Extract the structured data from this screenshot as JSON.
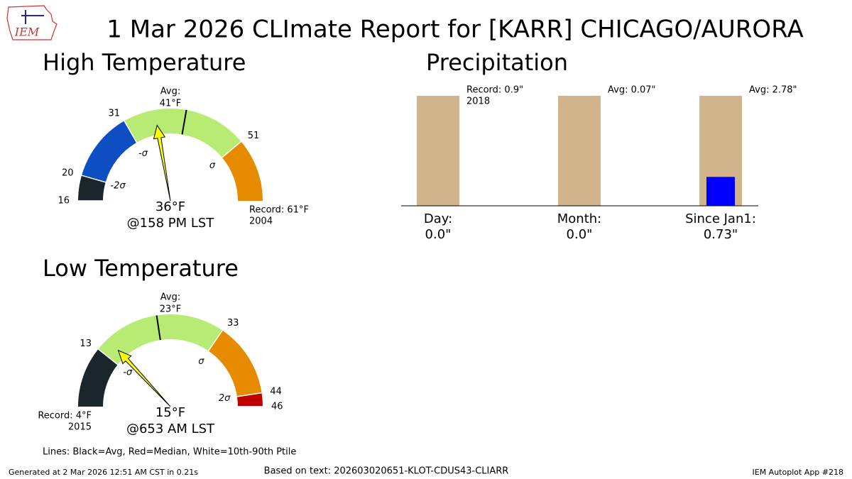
{
  "title": "1 Mar 2026 CLImate Report for [KARR] CHICAGO/AURORA",
  "logo": "IEM",
  "legend_note": "Lines: Black=Avg, Red=Median, White=10th-90th Ptile",
  "footer": {
    "left": "Generated at 2 Mar 2026 12:51 AM CST in 0.21s",
    "center": "Based on text: 202603020651-KLOT-CDUS43-CLIARR",
    "right": "IEM Autoplot App #218"
  },
  "chart_data": [
    {
      "type": "gauge",
      "title": "High Temperature",
      "lim": [
        16,
        61
      ],
      "ticks": [
        16,
        20,
        31,
        51
      ],
      "band_colors": [
        "#1b262c",
        "#0e4ec2",
        "#b8eb73",
        "#e68a00"
      ],
      "sigma": [
        {
          "value": 20,
          "label": "-2σ"
        },
        {
          "value": 31,
          "label": "-σ"
        },
        {
          "value": 51,
          "label": "σ"
        }
      ],
      "avg": 41,
      "avg_title": "Avg:",
      "avg_label": "41°F",
      "value": 36,
      "value_label": "36°F",
      "time_label": "@158 PM LST",
      "needle_color": "#ffff00",
      "record_label": "Record: 61°F",
      "record_year": "2004",
      "record_side": "right"
    },
    {
      "type": "bar",
      "title": "Precipitation",
      "categories": [
        "Day:",
        "Month:",
        "Since Jan1:"
      ],
      "values": [
        0.0,
        0.0,
        0.73
      ],
      "value_labels": [
        "0.0\"",
        "0.0\"",
        "0.73\""
      ],
      "color": "#0000ff",
      "reference": {
        "values": [
          0.9,
          0.07,
          2.78
        ],
        "labels": [
          "Record: 0.9\"",
          "Avg: 0.07\"",
          "Avg: 2.78\""
        ],
        "years": [
          "2018",
          null,
          null
        ],
        "color": "#d2b48c"
      }
    },
    {
      "type": "gauge",
      "title": "Low Temperature",
      "lim": [
        4,
        46
      ],
      "ticks": [
        13,
        33,
        44,
        46
      ],
      "band_colors": [
        "#1b262c",
        "#b8eb73",
        "#e68a00",
        "#c00000"
      ],
      "sigma": [
        {
          "value": 13,
          "label": "-σ"
        },
        {
          "value": 33,
          "label": "σ"
        },
        {
          "value": 44,
          "label": "2σ"
        }
      ],
      "avg": 23,
      "avg_title": "Avg:",
      "avg_label": "23°F",
      "value": 15,
      "value_label": "15°F",
      "time_label": "@653 AM LST",
      "needle_color": "#ffff00",
      "record_label": "Record: 4°F",
      "record_year": "2015",
      "record_side": "left"
    }
  ]
}
